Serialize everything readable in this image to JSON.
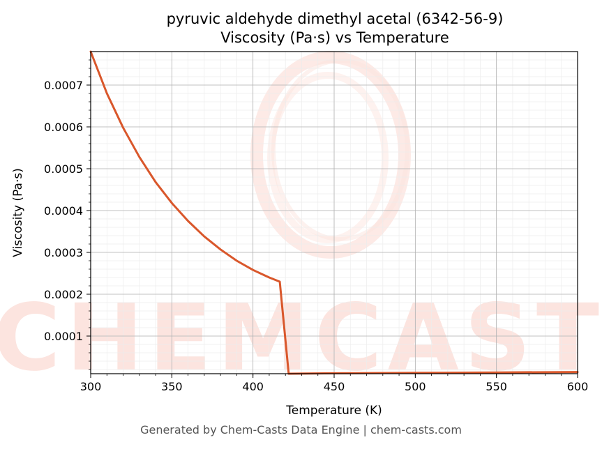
{
  "chart_data": {
    "type": "line",
    "title": "pyruvic aldehyde dimethyl acetal (6342-56-9)",
    "subtitle": "Viscosity (Pa·s) vs Temperature",
    "xlabel": "Temperature (K)",
    "ylabel": "Viscosity (Pa·s)",
    "xlim": [
      300,
      600
    ],
    "ylim": [
      1e-05,
      0.00078
    ],
    "x_ticks": [
      300,
      350,
      400,
      450,
      500,
      550,
      600
    ],
    "x_tick_labels": [
      "300",
      "350",
      "400",
      "450",
      "500",
      "550",
      "600"
    ],
    "y_ticks": [
      0.0001,
      0.0002,
      0.0003,
      0.0004,
      0.0005,
      0.0006,
      0.0007
    ],
    "y_tick_labels": [
      "0.0001",
      "0.0002",
      "0.0003",
      "0.0004",
      "0.0005",
      "0.0006",
      "0.0007"
    ],
    "grid": true,
    "series": [
      {
        "color": "#d9572b",
        "x": [
          300,
          310,
          320,
          330,
          340,
          350,
          360,
          370,
          380,
          390,
          400,
          410,
          416.5,
          422,
          450,
          500,
          550,
          600
        ],
        "values": [
          0.00078,
          0.00068,
          0.000598,
          0.000528,
          0.000468,
          0.000418,
          0.000375,
          0.000338,
          0.000307,
          0.00028,
          0.000258,
          0.00024,
          0.00023,
          1e-05,
          1.1e-05,
          1.2e-05,
          1.3e-05,
          1.4e-05
        ]
      }
    ]
  },
  "watermark": {
    "text": "CHEMCASTS",
    "color": "#fbd9d2"
  },
  "footer": {
    "text": "Generated by Chem-Casts Data Engine | chem-casts.com"
  }
}
